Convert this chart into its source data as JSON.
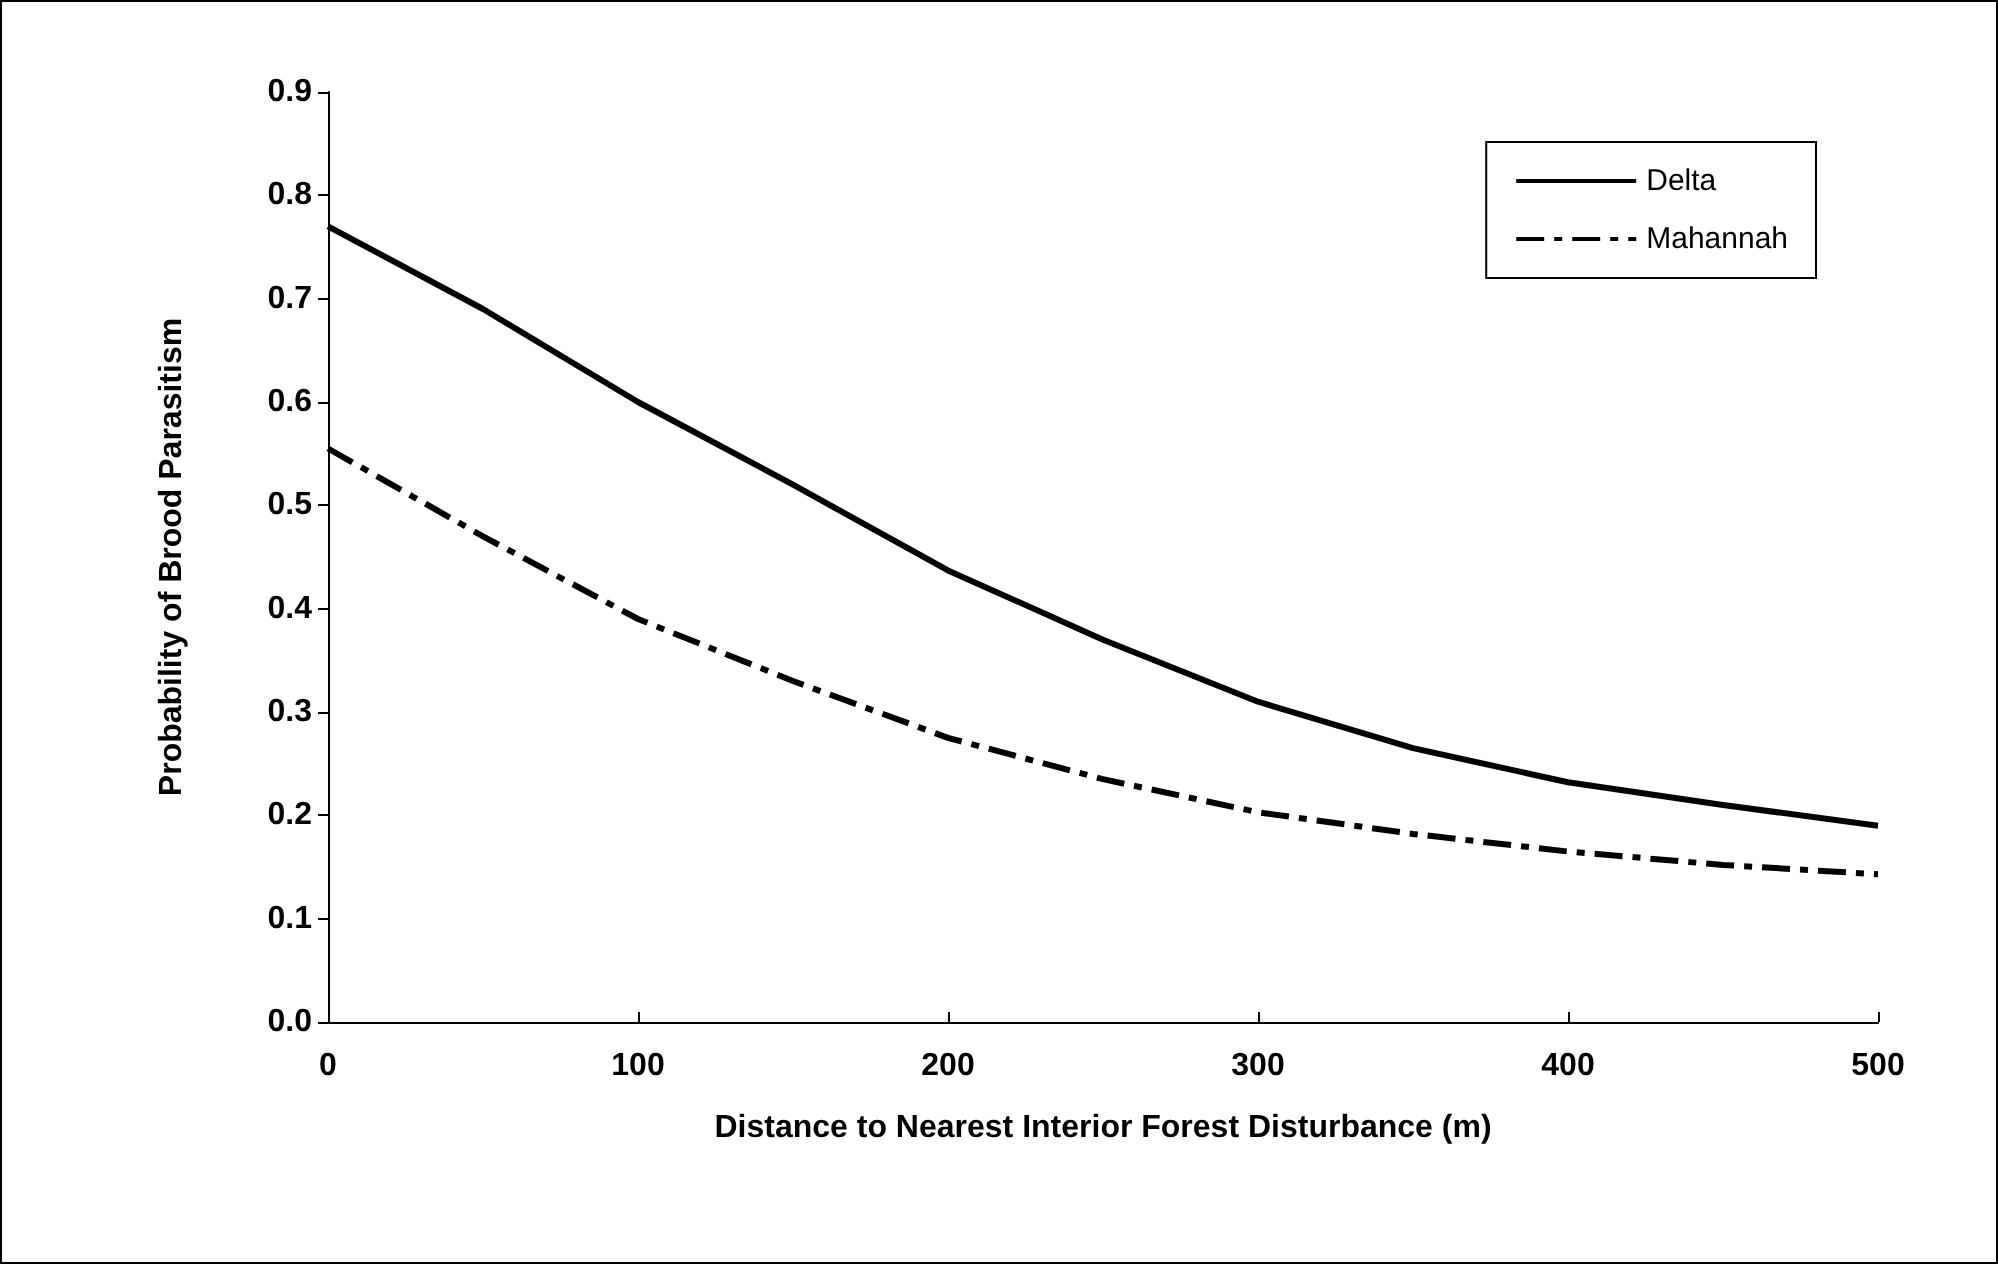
{
  "chart_data": {
    "type": "line",
    "xlabel": "Distance to Nearest Interior Forest Disturbance (m)",
    "ylabel": "Probability of Brood Parasitism",
    "x": [
      0,
      50,
      100,
      150,
      200,
      250,
      300,
      350,
      400,
      450,
      500
    ],
    "series": [
      {
        "name": "Delta",
        "color": "#000000",
        "line_style": "solid",
        "values": [
          0.77,
          0.69,
          0.6,
          0.52,
          0.437,
          0.37,
          0.31,
          0.265,
          0.232,
          0.21,
          0.19
        ]
      },
      {
        "name": "Mahannah",
        "color": "#000000",
        "line_style": "dashed",
        "values": [
          0.555,
          0.47,
          0.39,
          0.33,
          0.275,
          0.235,
          0.203,
          0.182,
          0.165,
          0.152,
          0.143
        ]
      }
    ],
    "xlim": [
      0,
      500
    ],
    "xticks": [
      0,
      100,
      200,
      300,
      400,
      500
    ],
    "ylim": [
      0,
      0.9
    ],
    "yticks": [
      {
        "value": 0,
        "label": "0.0"
      },
      0.1,
      0.2,
      0.3,
      0.4,
      0.5,
      0.6,
      0.7,
      0.8,
      0.9
    ],
    "grid": false,
    "legend": "top right",
    "marker": "none"
  }
}
